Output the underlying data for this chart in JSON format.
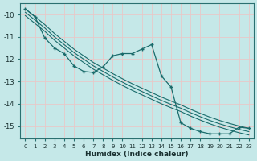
{
  "xlabel": "Humidex (Indice chaleur)",
  "background_color": "#c5e8e8",
  "grid_color": "#e8c8c8",
  "line_color": "#1a6b6b",
  "x": [
    0,
    1,
    2,
    3,
    4,
    5,
    6,
    7,
    8,
    9,
    10,
    11,
    12,
    13,
    14,
    15,
    16,
    17,
    18,
    19,
    20,
    21,
    22,
    23
  ],
  "data_line": [
    -9.75,
    -10.1,
    -11.05,
    -11.5,
    -11.75,
    -12.3,
    -12.55,
    -12.6,
    -12.35,
    -11.85,
    -11.75,
    -11.75,
    -11.55,
    -11.35,
    -12.75,
    -13.25,
    -14.85,
    -15.1,
    -15.25,
    -15.35,
    -15.35,
    -15.35,
    -15.05,
    -15.1
  ],
  "trend1": [
    -9.75,
    -10.1,
    -10.45,
    -10.85,
    -11.2,
    -11.55,
    -11.85,
    -12.15,
    -12.4,
    -12.65,
    -12.88,
    -13.1,
    -13.3,
    -13.5,
    -13.7,
    -13.88,
    -14.05,
    -14.25,
    -14.43,
    -14.6,
    -14.75,
    -14.88,
    -15.0,
    -15.1
  ],
  "trend2": [
    -9.9,
    -10.25,
    -10.6,
    -11.0,
    -11.35,
    -11.7,
    -12.0,
    -12.3,
    -12.55,
    -12.8,
    -13.03,
    -13.25,
    -13.45,
    -13.65,
    -13.85,
    -14.03,
    -14.2,
    -14.4,
    -14.58,
    -14.75,
    -14.9,
    -15.03,
    -15.15,
    -15.25
  ],
  "trend3": [
    -10.05,
    -10.4,
    -10.75,
    -11.15,
    -11.5,
    -11.85,
    -12.15,
    -12.45,
    -12.7,
    -12.95,
    -13.18,
    -13.4,
    -13.6,
    -13.8,
    -14.0,
    -14.18,
    -14.35,
    -14.55,
    -14.73,
    -14.9,
    -15.05,
    -15.18,
    -15.3,
    -15.4
  ],
  "ylim": [
    -15.55,
    -9.5
  ],
  "xlim": [
    -0.5,
    23.5
  ],
  "yticks": [
    -15,
    -14,
    -13,
    -12,
    -11,
    -10
  ],
  "xticks": [
    0,
    1,
    2,
    3,
    4,
    5,
    6,
    7,
    8,
    9,
    10,
    11,
    12,
    13,
    14,
    15,
    16,
    17,
    18,
    19,
    20,
    21,
    22,
    23
  ]
}
